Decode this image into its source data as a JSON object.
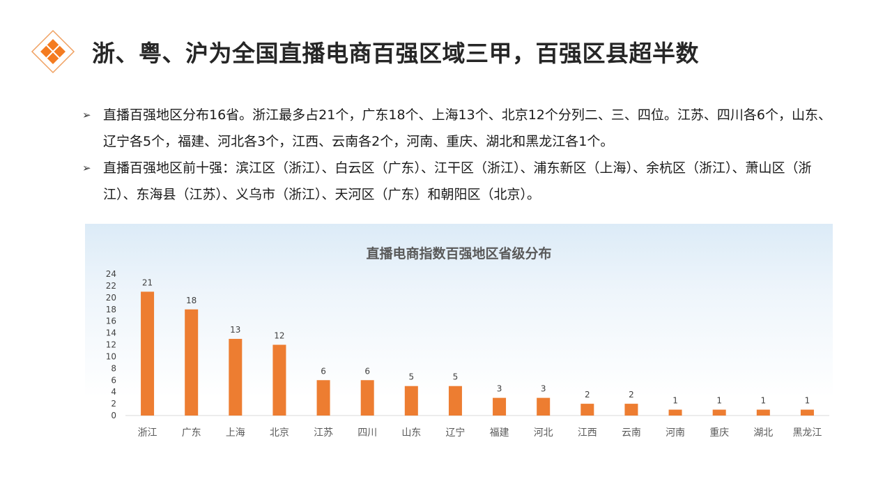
{
  "header": {
    "title": "浙、粤、沪为全国直播电商百强区域三甲，百强区县超半数",
    "logo_icon": "orange-diamond-logo-icon",
    "accent_color": "#f47b20"
  },
  "bullets": [
    {
      "marker_icon": "arrowhead-bullet-icon",
      "marker": "➢",
      "text": "直播百强地区分布16省。浙江最多占21个，广东18个、上海13个、北京12个分列二、三、四位。江苏、四川各6个，山东、辽宁各5个，福建、河北各3个，江西、云南各2个，河南、重庆、湖北和黑龙江各1个。"
    },
    {
      "marker_icon": "arrowhead-bullet-icon",
      "marker": "➢",
      "text": "直播百强地区前十强：滨江区（浙江）、白云区（广东）、江干区（浙江）、浦东新区（上海）、余杭区（浙江）、萧山区（浙江）、东海县（江苏）、义乌市（浙江）、天河区（广东）和朝阳区（北京）。"
    }
  ],
  "chart_data": {
    "type": "bar",
    "title": "直播电商指数百强地区省级分布",
    "xlabel": "",
    "ylabel": "",
    "categories": [
      "浙江",
      "广东",
      "上海",
      "北京",
      "江苏",
      "四川",
      "山东",
      "辽宁",
      "福建",
      "河北",
      "江西",
      "云南",
      "河南",
      "重庆",
      "湖北",
      "黑龙江"
    ],
    "values": [
      21,
      18,
      13,
      12,
      6,
      6,
      5,
      5,
      3,
      3,
      2,
      2,
      1,
      1,
      1,
      1
    ],
    "ylim": [
      0,
      24
    ],
    "yticks": [
      0,
      2,
      4,
      6,
      8,
      10,
      12,
      14,
      16,
      18,
      20,
      22,
      24
    ],
    "grid": false,
    "data_labels": true,
    "bar_color": "#ed7d31",
    "background_top_color": "#dcebf7"
  }
}
